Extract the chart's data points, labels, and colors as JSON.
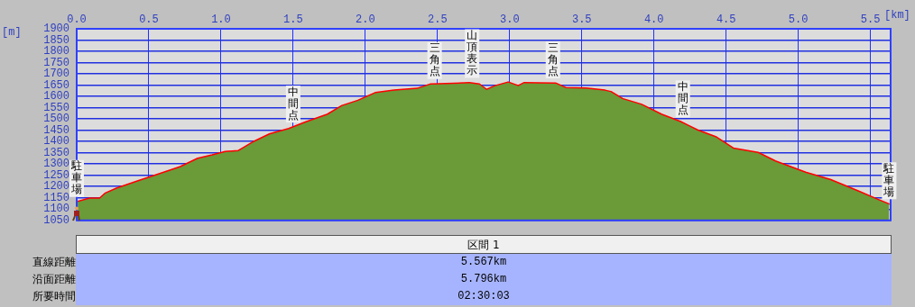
{
  "chart_data": {
    "type": "area",
    "xlabel": "[km]",
    "ylabel": "[m]",
    "x": [
      0,
      0.09,
      0.16,
      0.2,
      0.28,
      0.44,
      0.53,
      0.72,
      0.84,
      0.94,
      1.03,
      1.12,
      1.22,
      1.34,
      1.47,
      1.59,
      1.74,
      1.84,
      1.95,
      2.07,
      2.2,
      2.36,
      2.45,
      2.51,
      2.72,
      2.79,
      2.84,
      2.9,
      2.99,
      3.06,
      3.1,
      3.32,
      3.39,
      3.53,
      3.66,
      3.7,
      3.78,
      3.91,
      4.05,
      4.18,
      4.3,
      4.43,
      4.55,
      4.72,
      4.84,
      5.05,
      5.22,
      5.41,
      5.55,
      5.63
    ],
    "series": [
      {
        "type": "area",
        "color": "#6b9a38",
        "values": [
          1130,
          1146,
          1146,
          1169,
          1191,
          1226,
          1245,
          1286,
          1323,
          1338,
          1353,
          1357,
          1395,
          1432,
          1455,
          1485,
          1519,
          1557,
          1580,
          1614,
          1625,
          1633,
          1652,
          1653,
          1658,
          1652,
          1628,
          1645,
          1661,
          1645,
          1658,
          1656,
          1636,
          1634,
          1625,
          1619,
          1588,
          1563,
          1519,
          1487,
          1449,
          1418,
          1368,
          1349,
          1311,
          1261,
          1229,
          1179,
          1141,
          1120
        ]
      },
      {
        "type": "line",
        "color": "#ff0000",
        "values": [
          1130,
          1146,
          1146,
          1169,
          1191,
          1226,
          1245,
          1286,
          1323,
          1338,
          1353,
          1357,
          1395,
          1432,
          1455,
          1485,
          1519,
          1557,
          1580,
          1614,
          1625,
          1633,
          1652,
          1653,
          1658,
          1652,
          1628,
          1645,
          1661,
          1645,
          1658,
          1656,
          1636,
          1634,
          1625,
          1619,
          1588,
          1563,
          1519,
          1487,
          1449,
          1418,
          1368,
          1349,
          1311,
          1261,
          1229,
          1179,
          1141,
          1120
        ]
      }
    ],
    "xlim": [
      0,
      5.64
    ],
    "ylim": [
      1050,
      1900
    ],
    "xticks": [
      {
        "value": 0,
        "label": "0.0"
      },
      0.5,
      {
        "value": 1,
        "label": "1.0"
      },
      1.5,
      {
        "value": 2,
        "label": "2.0"
      },
      2.5,
      {
        "value": 3,
        "label": "3.0"
      },
      3.5,
      {
        "value": 4,
        "label": "4.0"
      },
      4.5,
      {
        "value": 5,
        "label": "5.0"
      },
      5.5
    ],
    "yticks": [
      1050,
      1100,
      1150,
      1200,
      1250,
      1300,
      1350,
      1400,
      1450,
      1500,
      1550,
      1600,
      1650,
      1700,
      1750,
      1800,
      1850,
      1900
    ],
    "grid": true,
    "legend": false,
    "marker": "none",
    "annotations": [
      {
        "text": "駐車場",
        "x": 0,
        "y": 1130
      },
      {
        "text": "中間点",
        "x": 1.5,
        "y": 1460
      },
      {
        "text": "三角点",
        "x": 2.48,
        "y": 1653
      },
      {
        "text": "山頂表示",
        "x": 2.74,
        "y": 1658
      },
      {
        "text": "三角点",
        "x": 3.3,
        "y": 1656
      },
      {
        "text": "中間点",
        "x": 4.2,
        "y": 1483
      },
      {
        "text": "駐車場",
        "x": 5.63,
        "y": 1120
      },
      "区間 1",
      "直線距離",
      "5.567km",
      "沿面距離",
      "5.796km",
      "所要時間",
      "02:30:03"
    ]
  }
}
